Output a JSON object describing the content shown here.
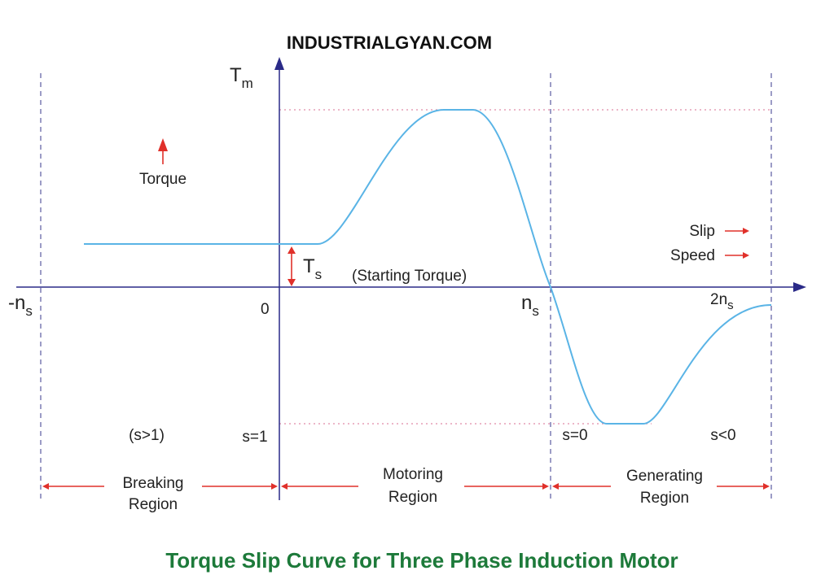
{
  "header": {
    "site": "INDUSTRIALGYAN.COM"
  },
  "axis": {
    "y_label": {
      "main": "T",
      "sub": "m"
    },
    "torque_hint": "Torque",
    "slip_hint": "Slip",
    "speed_hint": "Speed",
    "starting_torque": {
      "main": "T",
      "sub": "s",
      "note": "(Starting Torque)"
    },
    "x_marks": [
      {
        "main": "-n",
        "sub": "s"
      },
      {
        "main": "0",
        "sub": ""
      },
      {
        "main": "n",
        "sub": "s"
      },
      {
        "main": "2n",
        "sub": "s"
      }
    ]
  },
  "slip_labels": [
    "(s>1)",
    "s=1",
    "s=0",
    "s<0"
  ],
  "regions": [
    {
      "lines": [
        "Breaking",
        "Region"
      ]
    },
    {
      "lines": [
        "Motoring",
        "Region"
      ]
    },
    {
      "lines": [
        "Generating",
        "Region"
      ]
    }
  ],
  "footer": {
    "title": "Torque Slip Curve for Three Phase Induction Motor"
  }
}
